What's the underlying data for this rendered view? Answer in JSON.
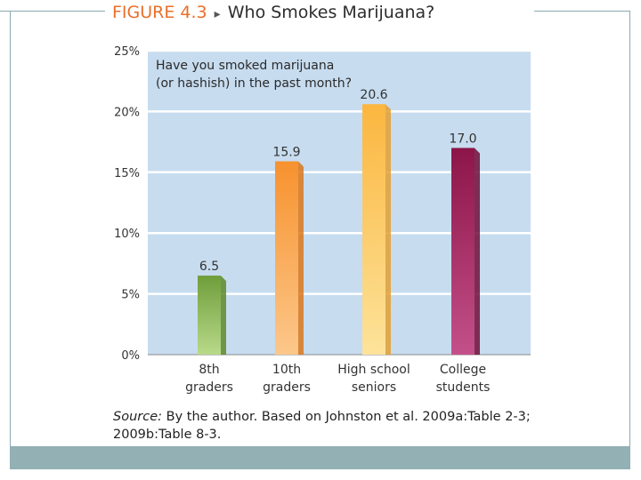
{
  "figure": {
    "label": "FIGURE 4.3",
    "arrow": "▸",
    "title": "Who Smokes Marijuana?"
  },
  "source": {
    "label": "Source:",
    "text": "By the author. Based on Johnston et al. 2009a:Table 2-3; 2009b:Table 8-3."
  },
  "chart_data": {
    "type": "bar",
    "title": "Have you smoked marijuana (or hashish) in the past month?",
    "title_lines": [
      "Have you smoked marijuana",
      "(or hashish) in the past month?"
    ],
    "categories": [
      "8th graders",
      "10th graders",
      "High school seniors",
      "College students"
    ],
    "category_lines": [
      [
        "8th",
        "graders"
      ],
      [
        "10th",
        "graders"
      ],
      [
        "High school",
        "seniors"
      ],
      [
        "College",
        "students"
      ]
    ],
    "values": [
      6.5,
      15.9,
      20.6,
      17.0
    ],
    "value_labels": [
      "6.5",
      "15.9",
      "20.6",
      "17.0"
    ],
    "ylim": [
      0,
      25
    ],
    "yticks": [
      0,
      5,
      10,
      15,
      20,
      25
    ],
    "ytick_labels": [
      "0%",
      "5%",
      "10%",
      "15%",
      "20%",
      "25%"
    ],
    "xlabel": "",
    "ylabel": "",
    "grid": true,
    "colors": {
      "background": "#c7dcef",
      "gridline": "#ffffff",
      "bars": [
        {
          "top": "#6f9e3a",
          "bottom": "#b8d98a",
          "side": "#5d8a2c"
        },
        {
          "top": "#f7922e",
          "bottom": "#fcc78a",
          "side": "#d9781c"
        },
        {
          "top": "#fbb63f",
          "bottom": "#fde39a",
          "side": "#e3a032"
        },
        {
          "top": "#8c1548",
          "bottom": "#c4508a",
          "side": "#6e0e38"
        }
      ]
    }
  }
}
